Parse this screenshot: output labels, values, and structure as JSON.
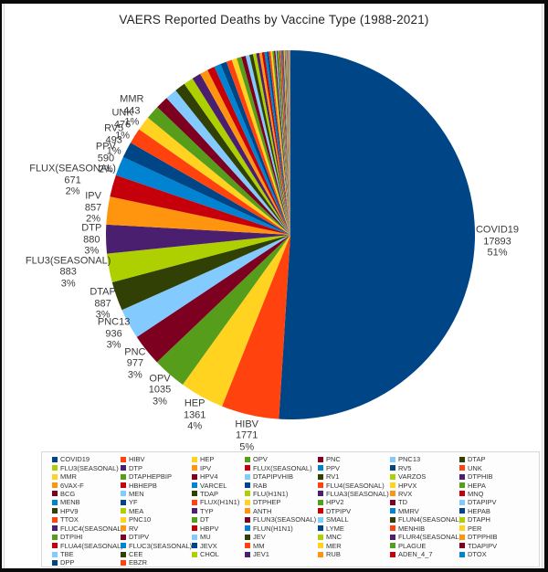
{
  "title": "VAERS Reported Deaths by Vaccine Type (1988-2021)",
  "chart_data": {
    "type": "pie",
    "title": "VAERS Reported Deaths by Vaccine Type (1988-2021)",
    "start_angle_deg": 0,
    "direction": "clockwise",
    "legend_position": "bottom",
    "legend_columns": 7,
    "palette": [
      "#004586",
      "#ff420e",
      "#ffd320",
      "#579d1c",
      "#7e0021",
      "#83caff",
      "#314004",
      "#aecf00",
      "#4b1f6f",
      "#ff950e",
      "#c5000b",
      "#0084d1"
    ],
    "slices": [
      {
        "name": "COVID19",
        "value": 17893,
        "pct": 51
      },
      {
        "name": "HIBV",
        "value": 1771,
        "pct": 5
      },
      {
        "name": "HEP",
        "value": 1361,
        "pct": 4
      },
      {
        "name": "OPV",
        "value": 1035,
        "pct": 3
      },
      {
        "name": "PNC",
        "value": 977,
        "pct": 3
      },
      {
        "name": "PNC13",
        "value": 936,
        "pct": 3
      },
      {
        "name": "DTAP",
        "value": 887,
        "pct": 3
      },
      {
        "name": "FLU3(SEASONAL)",
        "value": 883,
        "pct": 3
      },
      {
        "name": "DTP",
        "value": 880,
        "pct": 3
      },
      {
        "name": "IPV",
        "value": 857,
        "pct": 2
      },
      {
        "name": "FLUX(SEASONAL)",
        "value": 671,
        "pct": 2
      },
      {
        "name": "PPV",
        "value": 590,
        "pct": 2
      },
      {
        "name": "RV5",
        "value": 493,
        "pct": 1
      },
      {
        "name": "UNK",
        "value": 476,
        "pct": 1
      },
      {
        "name": "MMR",
        "value": 443,
        "pct": 1
      }
    ],
    "unlabeled_series": [
      "DTAPHEPBIP",
      "HPV4",
      "DTAPIPVHIB",
      "RV1",
      "VARZOS",
      "DTPHIB",
      "6VAX-F",
      "HBHEPB",
      "VARCEL",
      "RAB",
      "FLU4(SEASONAL)",
      "HPVX",
      "HEPA",
      "BCG",
      "MEN",
      "TDAP",
      "FLU(H1N1)",
      "FLUA3(SEASONAL)",
      "RVX",
      "MNQ",
      "MENB",
      "YF",
      "FLUX(H1N1)",
      "DTPHEP",
      "HPV2",
      "TD",
      "DTAPIPV",
      "HPV9",
      "MEA",
      "TYP",
      "ANTH",
      "DTPIPV",
      "MMRV",
      "HEPAB",
      "TTOX",
      "PNC10",
      "DT",
      "FLUN3(SEASONAL)",
      "SMALL",
      "FLUN4(SEASONAL)",
      "DTAPH",
      "FLUC4(SEASONAL)",
      "RV",
      "HBPV",
      "FLUN(H1N1)",
      "LYME",
      "MENHIB",
      "PER",
      "DTPIHI",
      "DTIPV",
      "MU",
      "JEV",
      "MNC",
      "FLUR4(SEASONAL)",
      "DTPPHIB",
      "FLUA4(SEASONAL)",
      "FLUC3(SEASONAL)",
      "JEVX",
      "MM",
      "MER",
      "PLAGUE",
      "TDAPIPV",
      "TBE",
      "CEE",
      "CHOL",
      "JEV1",
      "RUB",
      "ADEN_4_7",
      "DTOX",
      "DPP",
      "EBZR"
    ]
  }
}
